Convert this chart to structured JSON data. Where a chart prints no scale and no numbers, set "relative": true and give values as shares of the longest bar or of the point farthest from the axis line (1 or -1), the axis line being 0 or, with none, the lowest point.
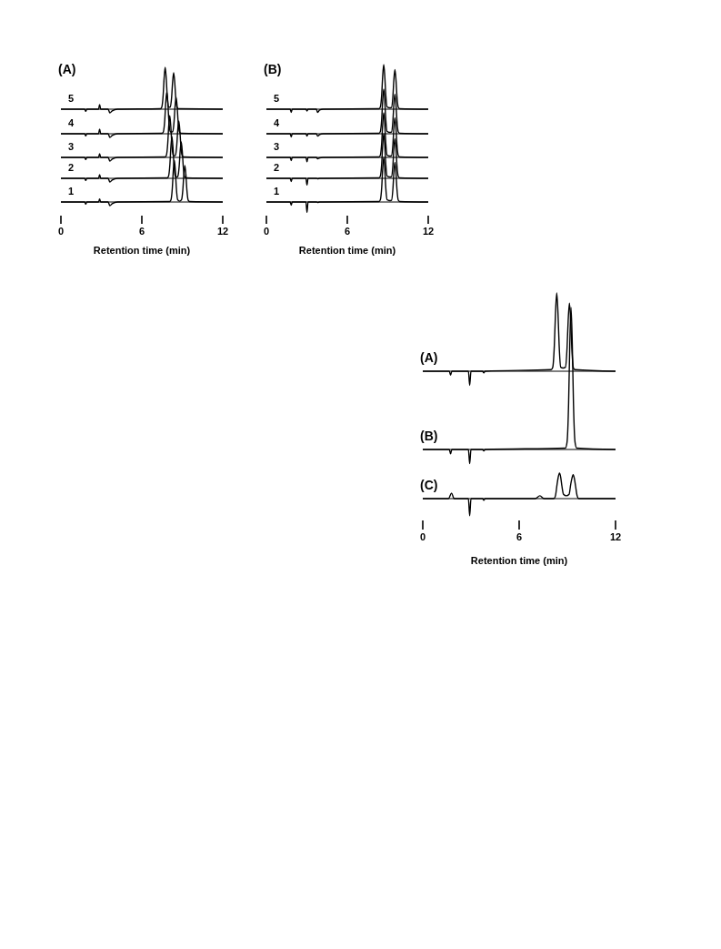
{
  "chart_data": [
    {
      "type": "line",
      "title": "(A)",
      "xlim": [
        0,
        12
      ],
      "relative": true,
      "tick_labels": false,
      "series": [
        {
          "name": "5",
          "color": "#000000",
          "x": [
            0,
            1.76,
            1.84,
            1.92,
            2.79,
            2.87,
            2.95,
            3.5,
            3.63,
            3.8,
            4.2,
            7.38,
            7.48,
            7.58,
            7.65,
            7.73,
            7.81,
            7.88,
            7.98,
            8.045,
            8.11,
            8.21,
            8.28,
            8.36,
            8.44,
            8.51,
            8.61,
            8.71,
            12
          ],
          "values": [
            0,
            0,
            -0.05,
            0,
            0,
            0.11,
            0,
            0,
            -0.09,
            -0.04,
            0,
            0.01,
            0.05,
            0.33,
            0.73,
            1,
            0.73,
            0.33,
            0.05,
            0.05,
            0.05,
            0.29,
            0.64,
            0.87,
            0.64,
            0.29,
            0.04,
            0.01,
            0
          ]
        }
      ]
    },
    {
      "type": "line",
      "xlim": [
        0,
        12
      ],
      "relative": true,
      "tick_labels": false,
      "series": [
        {
          "name": "4",
          "color": "#000000",
          "x": [
            0,
            1.76,
            1.84,
            1.92,
            2.79,
            2.87,
            2.95,
            3.5,
            3.63,
            3.8,
            4.2,
            7.5,
            7.6,
            7.7,
            7.77,
            7.85,
            7.93,
            8.0,
            8.1,
            8.195,
            8.29,
            8.39,
            8.46,
            8.54,
            8.62,
            8.69,
            8.79,
            8.89,
            12
          ],
          "values": [
            0,
            0,
            -0.05,
            0,
            0,
            0.11,
            0,
            0,
            -0.09,
            -0.04,
            0,
            0.01,
            0.05,
            0.33,
            0.73,
            1,
            0.73,
            0.33,
            0.05,
            0.04,
            0.05,
            0.29,
            0.64,
            0.87,
            0.64,
            0.29,
            0.04,
            0.01,
            0
          ]
        }
      ]
    },
    {
      "type": "line",
      "xlim": [
        0,
        12
      ],
      "relative": true,
      "tick_labels": false,
      "series": [
        {
          "name": "3",
          "color": "#000000",
          "x": [
            0,
            1.76,
            1.84,
            1.92,
            2.79,
            2.87,
            2.95,
            3.5,
            3.63,
            3.8,
            4.2,
            7.72,
            7.82,
            7.92,
            7.99,
            8.07,
            8.15,
            8.22,
            8.32,
            8.405,
            8.49,
            8.59,
            8.66,
            8.74,
            8.82,
            8.89,
            8.99,
            9.09,
            12
          ],
          "values": [
            0,
            0,
            -0.05,
            0,
            0,
            0.09,
            0,
            0,
            -0.09,
            -0.04,
            0,
            0.01,
            0.05,
            0.33,
            0.73,
            1,
            0.73,
            0.33,
            0.05,
            0.04,
            0.05,
            0.29,
            0.64,
            0.87,
            0.64,
            0.29,
            0.04,
            0.01,
            0
          ]
        }
      ]
    },
    {
      "type": "line",
      "xlim": [
        0,
        12
      ],
      "relative": true,
      "tick_labels": false,
      "series": [
        {
          "name": "2",
          "color": "#000000",
          "x": [
            0,
            1.76,
            1.84,
            1.92,
            2.79,
            2.87,
            2.95,
            3.5,
            3.63,
            3.8,
            4.2,
            7.88,
            7.98,
            8.08,
            8.15,
            8.23,
            8.31,
            8.38,
            8.48,
            8.575,
            8.67,
            8.77,
            8.84,
            8.92,
            9.0,
            9.07,
            9.17,
            9.27,
            12
          ],
          "values": [
            0,
            0,
            -0.05,
            0,
            0,
            0.09,
            0,
            0,
            -0.09,
            -0.04,
            0,
            0.01,
            0.05,
            0.33,
            0.73,
            1,
            0.73,
            0.33,
            0.05,
            0.03,
            0.05,
            0.29,
            0.64,
            0.87,
            0.64,
            0.29,
            0.04,
            0.01,
            0
          ]
        }
      ]
    },
    {
      "type": "line",
      "xlabel": "Retention time (min)",
      "xlim": [
        0,
        12
      ],
      "xticks": [
        0,
        6,
        12
      ],
      "relative": true,
      "tick_labels": "x",
      "series": [
        {
          "name": "1",
          "color": "#000000",
          "x": [
            0,
            1.76,
            1.84,
            1.92,
            2.79,
            2.87,
            2.95,
            3.5,
            3.63,
            3.8,
            4.2,
            8.06,
            8.16,
            8.26,
            8.33,
            8.41,
            8.49,
            8.56,
            8.66,
            8.8,
            8.94,
            9.04,
            9.11,
            9.19,
            9.27,
            9.34,
            9.44,
            9.54,
            12
          ],
          "values": [
            0,
            0,
            -0.05,
            0,
            0,
            0.07,
            0,
            0,
            -0.09,
            -0.04,
            0,
            0.01,
            0.05,
            0.33,
            0.73,
            1,
            0.73,
            0.33,
            0.05,
            0.02,
            0.05,
            0.29,
            0.64,
            0.87,
            0.64,
            0.29,
            0.04,
            0.01,
            0
          ]
        }
      ]
    },
    {
      "type": "line",
      "title": "(B)",
      "xlim": [
        0,
        12
      ],
      "relative": true,
      "tick_labels": false,
      "series": [
        {
          "name": "5",
          "color": "#000000",
          "x": [
            0,
            1.76,
            1.84,
            1.92,
            2.93,
            3.01,
            3.09,
            3.7,
            3.8,
            3.95,
            4.2,
            8.35,
            8.45,
            8.55,
            8.62,
            8.7,
            8.78,
            8.85,
            8.95,
            9.115,
            9.28,
            9.38,
            9.45,
            9.53,
            9.61,
            9.68,
            9.78,
            9.88,
            12
          ],
          "values": [
            0,
            0,
            -0.07,
            0,
            0,
            -0.04,
            0,
            0,
            -0.07,
            -0.02,
            0,
            0.01,
            0.05,
            0.33,
            0.73,
            1,
            0.73,
            0.33,
            0.05,
            0.03,
            0.04,
            0.29,
            0.65,
            0.89,
            0.65,
            0.29,
            0.04,
            0.01,
            0
          ]
        }
      ]
    },
    {
      "type": "line",
      "xlim": [
        0,
        12
      ],
      "relative": true,
      "tick_labels": false,
      "series": [
        {
          "name": "4",
          "color": "#000000",
          "x": [
            0,
            1.76,
            1.84,
            1.92,
            2.93,
            3.01,
            3.09,
            3.7,
            3.8,
            3.95,
            4.2,
            8.35,
            8.45,
            8.55,
            8.62,
            8.7,
            8.78,
            8.85,
            8.95,
            9.115,
            9.28,
            9.38,
            9.45,
            9.53,
            9.61,
            9.68,
            9.78,
            9.88,
            12
          ],
          "values": [
            0,
            0,
            -0.07,
            0,
            0,
            -0.05,
            0,
            0,
            -0.05,
            -0.02,
            0,
            0.01,
            0.05,
            0.33,
            0.73,
            1,
            0.73,
            0.33,
            0.05,
            0.03,
            0.04,
            0.29,
            0.65,
            0.89,
            0.65,
            0.29,
            0.04,
            0.01,
            0
          ]
        }
      ]
    },
    {
      "type": "line",
      "xlim": [
        0,
        12
      ],
      "relative": true,
      "tick_labels": false,
      "series": [
        {
          "name": "3",
          "color": "#000000",
          "x": [
            0,
            1.76,
            1.84,
            1.92,
            2.93,
            3.01,
            3.09,
            3.7,
            3.8,
            3.95,
            4.2,
            8.35,
            8.45,
            8.55,
            8.62,
            8.7,
            8.78,
            8.85,
            8.95,
            9.115,
            9.28,
            9.38,
            9.45,
            9.53,
            9.61,
            9.68,
            9.78,
            9.88,
            12
          ],
          "values": [
            0,
            0,
            -0.07,
            0,
            0,
            -0.1,
            0,
            0,
            -0.03,
            -0.01,
            0,
            0.01,
            0.05,
            0.33,
            0.73,
            1,
            0.73,
            0.33,
            0.05,
            0.03,
            0.04,
            0.29,
            0.65,
            0.89,
            0.65,
            0.29,
            0.04,
            0.01,
            0
          ]
        }
      ]
    },
    {
      "type": "line",
      "xlim": [
        0,
        12
      ],
      "relative": true,
      "tick_labels": false,
      "series": [
        {
          "name": "2",
          "color": "#000000",
          "x": [
            0,
            1.76,
            1.84,
            1.92,
            2.93,
            3.01,
            3.09,
            3.7,
            3.8,
            3.95,
            4.2,
            8.35,
            8.45,
            8.55,
            8.62,
            8.7,
            8.78,
            8.85,
            8.95,
            9.115,
            9.28,
            9.38,
            9.45,
            9.53,
            9.61,
            9.68,
            9.78,
            9.88,
            12
          ],
          "values": [
            0,
            0,
            -0.07,
            0,
            0,
            -0.15,
            0,
            0,
            -0.01,
            0,
            0,
            0.01,
            0.05,
            0.33,
            0.73,
            1,
            0.73,
            0.33,
            0.05,
            0.03,
            0.04,
            0.29,
            0.65,
            0.89,
            0.65,
            0.29,
            0.04,
            0.01,
            0
          ]
        }
      ]
    },
    {
      "type": "line",
      "xlabel": "Retention time (min)",
      "xlim": [
        0,
        12
      ],
      "xticks": [
        0,
        6,
        12
      ],
      "relative": true,
      "tick_labels": "x",
      "series": [
        {
          "name": "1",
          "color": "#000000",
          "x": [
            0,
            1.76,
            1.84,
            1.92,
            2.93,
            3.01,
            3.09,
            3.7,
            3.8,
            3.95,
            4.2,
            8.35,
            8.45,
            8.55,
            8.62,
            8.7,
            8.78,
            8.85,
            8.95,
            9.115,
            9.28,
            9.38,
            9.45,
            9.53,
            9.61,
            9.68,
            9.78,
            9.88,
            12
          ],
          "values": [
            0,
            0,
            -0.07,
            0,
            0,
            -0.23,
            0,
            0,
            -0.01,
            0,
            0,
            0.01,
            0.05,
            0.33,
            0.73,
            1,
            0.73,
            0.33,
            0.05,
            0.03,
            0.04,
            0.29,
            0.65,
            0.89,
            0.65,
            0.29,
            0.04,
            0.01,
            0
          ]
        }
      ]
    },
    {
      "type": "line",
      "xlim": [
        0,
        12
      ],
      "relative": true,
      "tick_labels": false,
      "series": [
        {
          "name": "(A)",
          "color": "#000000",
          "x": [
            0,
            1.65,
            1.73,
            1.81,
            2.84,
            2.92,
            3.0,
            3.72,
            3.8,
            3.88,
            7.99,
            8.09,
            8.19,
            8.26,
            8.34,
            8.42,
            8.49,
            8.59,
            8.735,
            8.88,
            8.98,
            9.05,
            9.13,
            9.21,
            9.28,
            9.38,
            9.48,
            12
          ],
          "values": [
            0,
            0,
            -0.05,
            0,
            0,
            -0.18,
            0,
            0,
            -0.02,
            0,
            0.02,
            0.05,
            0.33,
            0.73,
            1,
            0.73,
            0.33,
            0.05,
            0.04,
            0.05,
            0.29,
            0.64,
            0.87,
            0.64,
            0.29,
            0.04,
            0.02,
            0
          ]
        }
      ]
    },
    {
      "type": "line",
      "xlim": [
        0,
        12
      ],
      "relative": true,
      "tick_labels": false,
      "series": [
        {
          "name": "(B)",
          "color": "#000000",
          "x": [
            0,
            1.65,
            1.73,
            1.81,
            2.84,
            2.92,
            3.0,
            3.72,
            3.8,
            3.88,
            8.88,
            8.98,
            9.08,
            9.15,
            9.23,
            9.31,
            9.38,
            9.48,
            9.58,
            12
          ],
          "values": [
            0,
            0,
            -0.03,
            0,
            0,
            -0.1,
            0,
            0,
            -0.01,
            0,
            0.01,
            0.05,
            0.33,
            0.73,
            1,
            0.73,
            0.33,
            0.05,
            0.01,
            0
          ]
        }
      ]
    },
    {
      "type": "line",
      "xlabel": "Retention time (min)",
      "xlim": [
        0,
        12
      ],
      "xticks": [
        0,
        6,
        12
      ],
      "relative": true,
      "tick_labels": "x",
      "series": [
        {
          "name": "(C)",
          "color": "#000000",
          "x": [
            0,
            1.6,
            1.79,
            1.95,
            2.84,
            2.92,
            3.0,
            3.72,
            3.8,
            3.88,
            7.0,
            7.29,
            7.55,
            8.16,
            8.26,
            8.36,
            8.43,
            8.51,
            8.59,
            8.66,
            8.76,
            8.935,
            9.11,
            9.21,
            9.28,
            9.36,
            9.44,
            9.51,
            9.61,
            9.71,
            12
          ],
          "values": [
            0,
            0,
            0.22,
            0,
            0,
            -0.67,
            0,
            0,
            -0.06,
            0,
            0,
            0.11,
            0,
            0,
            0.11,
            0.56,
            0.83,
            1,
            0.83,
            0.5,
            0.17,
            0.11,
            0.17,
            0.56,
            0.78,
            0.94,
            0.78,
            0.5,
            0.11,
            0,
            0
          ]
        }
      ]
    }
  ]
}
